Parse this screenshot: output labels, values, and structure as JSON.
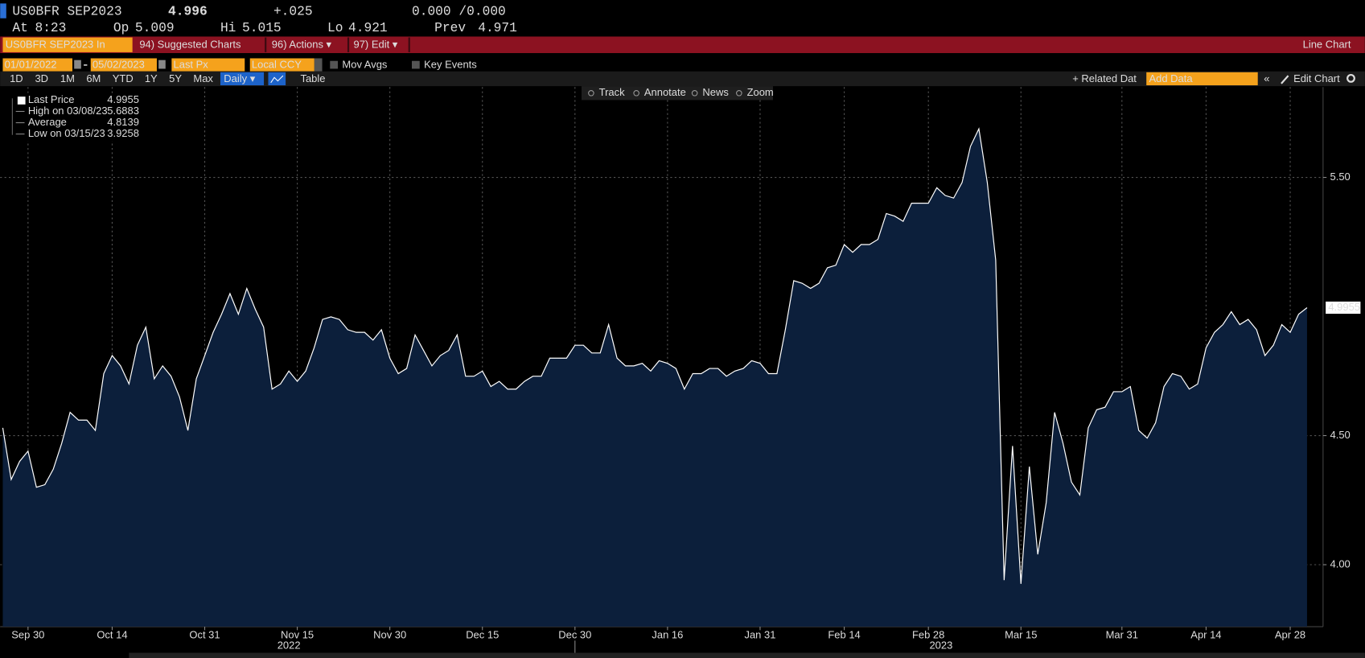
{
  "header": {
    "ticker": "US0BFR SEP2023",
    "last": "4.996",
    "change": "+.025",
    "bid_ask": "0.000 /0.000",
    "fields": [
      {
        "label": "At",
        "value": "8:23"
      },
      {
        "label": "Op",
        "value": "5.009"
      },
      {
        "label": "Hi",
        "value": "5.015"
      },
      {
        "label": "Lo",
        "value": "4.921"
      },
      {
        "label": "Prev",
        "value": "4.971"
      }
    ]
  },
  "menu": {
    "security": "US0BFR SEP2023 In",
    "suggested": "94) Suggested Charts",
    "actions": "96) Actions ▾",
    "edit": "97) Edit ▾",
    "chart_type": "Line Chart"
  },
  "toolbar": {
    "start_date": "01/01/2022",
    "end_date": "05/02/2023",
    "field": "Last Px",
    "currency": "Local CCY",
    "mov_avgs": "Mov Avgs",
    "key_events": "Key Events"
  },
  "periods": [
    "1D",
    "3D",
    "1M",
    "6M",
    "YTD",
    "1Y",
    "5Y",
    "Max"
  ],
  "frequency": "Daily ▾",
  "table": "Table",
  "related_data": "+ Related Dat",
  "add_data": "Add Data",
  "edit_chart": "Edit Chart",
  "chart_tools": [
    "Track",
    "Annotate",
    "News",
    "Zoom"
  ],
  "legend": [
    {
      "label": "Last Price",
      "value": "4.9955"
    },
    {
      "label": "High on 03/08/23",
      "value": "5.6883"
    },
    {
      "label": "Average",
      "value": "4.8139"
    },
    {
      "label": "Low on 03/15/23",
      "value": "3.9258"
    }
  ],
  "chart_data": {
    "type": "line",
    "color": "#ffffff",
    "fill": "#0c1f3b",
    "grid": true,
    "ylim": [
      3.76,
      5.85
    ],
    "yticks": [
      {
        "value": 4,
        "label": "4.00"
      },
      {
        "value": 4.5,
        "label": "4.50"
      },
      {
        "value": 5.5,
        "label": "5.50"
      }
    ],
    "year_labels": [
      "2022",
      "2023"
    ],
    "categories": [
      null,
      null,
      null,
      "Sep 30",
      null,
      null,
      null,
      null,
      null,
      null,
      null,
      null,
      null,
      "Oct 14",
      null,
      null,
      null,
      null,
      null,
      null,
      null,
      null,
      null,
      null,
      "Oct 31",
      null,
      null,
      null,
      null,
      null,
      null,
      null,
      null,
      null,
      null,
      "Nov 15",
      null,
      null,
      null,
      null,
      null,
      null,
      null,
      null,
      null,
      null,
      "Nov 30",
      null,
      null,
      null,
      null,
      null,
      null,
      null,
      null,
      null,
      null,
      "Dec 15",
      null,
      null,
      null,
      null,
      null,
      null,
      null,
      null,
      null,
      null,
      "Dec 30",
      null,
      null,
      null,
      null,
      null,
      null,
      null,
      null,
      null,
      null,
      "Jan 16",
      null,
      null,
      null,
      null,
      null,
      null,
      null,
      null,
      null,
      null,
      "Jan 31",
      null,
      null,
      null,
      null,
      null,
      null,
      null,
      null,
      null,
      "Feb 14",
      null,
      null,
      null,
      null,
      null,
      null,
      null,
      null,
      null,
      "Feb 28",
      null,
      null,
      null,
      null,
      null,
      null,
      null,
      null,
      null,
      null,
      "Mar 15",
      null,
      null,
      null,
      null,
      null,
      null,
      null,
      null,
      null,
      null,
      null,
      "Mar 31",
      null,
      null,
      null,
      null,
      null,
      null,
      null,
      null,
      null,
      "Apr 14",
      null,
      null,
      null,
      null,
      null,
      null,
      null,
      null,
      null,
      "Apr 28",
      null,
      null
    ],
    "values": [
      4.53,
      4.33,
      4.4,
      4.44,
      4.3,
      4.31,
      4.37,
      4.47,
      4.59,
      4.56,
      4.56,
      4.52,
      4.74,
      4.81,
      4.77,
      4.7,
      4.85,
      4.92,
      4.72,
      4.77,
      4.73,
      4.65,
      4.52,
      4.72,
      4.81,
      4.9,
      4.97,
      5.05,
      4.97,
      5.07,
      4.99,
      4.92,
      4.68,
      4.7,
      4.75,
      4.71,
      4.75,
      4.84,
      4.95,
      4.96,
      4.95,
      4.91,
      4.9,
      4.9,
      4.87,
      4.91,
      4.8,
      4.74,
      4.76,
      4.89,
      4.83,
      4.77,
      4.81,
      4.83,
      4.89,
      4.73,
      4.73,
      4.75,
      4.69,
      4.71,
      4.68,
      4.68,
      4.71,
      4.73,
      4.73,
      4.8,
      4.8,
      4.8,
      4.85,
      4.85,
      4.82,
      4.82,
      4.93,
      4.8,
      4.77,
      4.77,
      4.78,
      4.75,
      4.79,
      4.78,
      4.76,
      4.68,
      4.74,
      4.74,
      4.76,
      4.76,
      4.73,
      4.75,
      4.76,
      4.79,
      4.78,
      4.74,
      4.74,
      4.91,
      5.1,
      5.09,
      5.07,
      5.09,
      5.15,
      5.16,
      5.24,
      5.21,
      5.24,
      5.24,
      5.26,
      5.36,
      5.35,
      5.33,
      5.4,
      5.4,
      5.4,
      5.46,
      5.43,
      5.42,
      5.48,
      5.62,
      5.6883,
      5.48,
      5.18,
      3.94,
      4.46,
      3.9258,
      4.38,
      4.04,
      4.24,
      4.59,
      4.47,
      4.32,
      4.27,
      4.53,
      4.6,
      4.61,
      4.67,
      4.67,
      4.69,
      4.52,
      4.49,
      4.55,
      4.69,
      4.74,
      4.73,
      4.68,
      4.7,
      4.84,
      4.9,
      4.93,
      4.98,
      4.93,
      4.95,
      4.91,
      4.81,
      4.85,
      4.93,
      4.9,
      4.97,
      4.9955
    ]
  }
}
